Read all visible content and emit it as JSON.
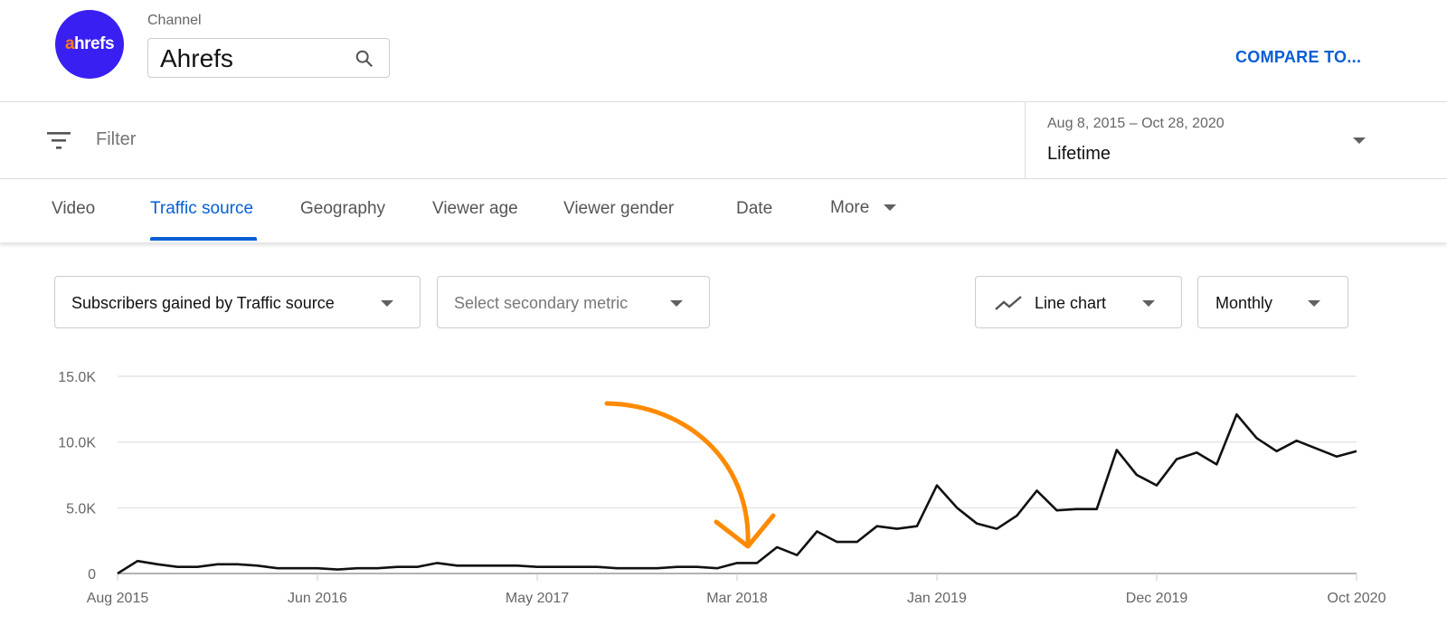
{
  "header": {
    "logo_text_accent": "a",
    "logo_text_rest": "hrefs",
    "channel_label": "Channel",
    "channel_value": "Ahrefs",
    "compare_label": "COMPARE TO..."
  },
  "filter": {
    "placeholder": "Filter",
    "date_range": "Aug 8, 2015 – Oct 28, 2020",
    "date_preset": "Lifetime"
  },
  "tabs": [
    {
      "label": "Video"
    },
    {
      "label": "Traffic source",
      "active": true
    },
    {
      "label": "Geography"
    },
    {
      "label": "Viewer age"
    },
    {
      "label": "Viewer gender"
    },
    {
      "label": "Date"
    },
    {
      "label": "More"
    }
  ],
  "controls": {
    "primary_metric": "Subscribers gained by Traffic source",
    "secondary_metric": "Select secondary metric",
    "chart_type": "Line chart",
    "interval": "Monthly"
  },
  "colors": {
    "accent": "#065fd4",
    "line": "#111111",
    "annotation": "#ff8a00",
    "logo_bg": "#3a1ff2"
  },
  "chart_data": {
    "type": "line",
    "ylim": [
      0,
      15000
    ],
    "y_ticks": [
      {
        "value": 0,
        "label": "0"
      },
      {
        "value": 5000,
        "label": "5.0K"
      },
      {
        "value": 10000,
        "label": "10.0K"
      },
      {
        "value": 15000,
        "label": "15.0K"
      }
    ],
    "x_ticks": [
      {
        "index": 0,
        "label": "Aug 2015"
      },
      {
        "index": 10,
        "label": "Jun 2016"
      },
      {
        "index": 21,
        "label": "May 2017"
      },
      {
        "index": 31,
        "label": "Mar 2018"
      },
      {
        "index": 41,
        "label": "Jan 2019"
      },
      {
        "index": 52,
        "label": "Dec 2019"
      },
      {
        "index": 62,
        "label": "Oct 2020"
      }
    ],
    "x_start": "Aug 2015",
    "x_end": "Oct 2020",
    "grid": true,
    "values": [
      0,
      950,
      700,
      500,
      500,
      700,
      700,
      600,
      400,
      400,
      400,
      300,
      400,
      400,
      500,
      500,
      800,
      600,
      600,
      600,
      600,
      500,
      500,
      500,
      500,
      400,
      400,
      400,
      500,
      500,
      400,
      800,
      800,
      2000,
      1400,
      3200,
      2400,
      2400,
      3600,
      3400,
      3600,
      6700,
      5000,
      3800,
      3400,
      4400,
      6300,
      4800,
      4900,
      4900,
      9400,
      7500,
      6700,
      8700,
      9200,
      8300,
      12100,
      10300,
      9300,
      10100,
      9500,
      8900,
      9300
    ],
    "annotation": {
      "type": "arrow",
      "points_to": "Mar 2018"
    }
  }
}
